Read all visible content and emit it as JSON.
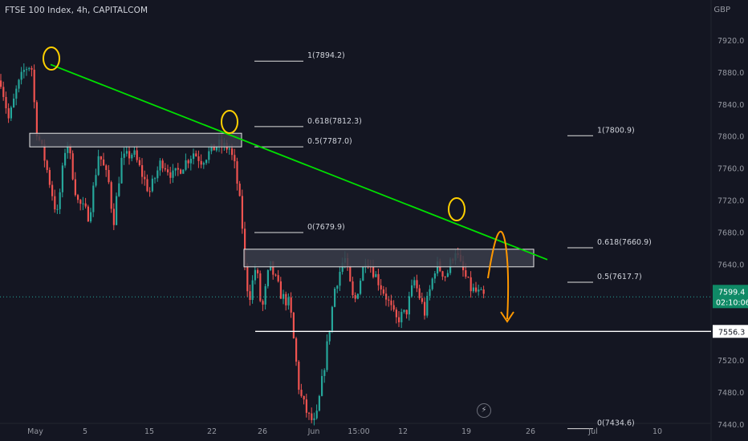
{
  "header": {
    "title": "FTSE 100 Index, 4h, CAPITALCOM",
    "currency": "GBP"
  },
  "icons": {
    "flash": "lightning-icon"
  },
  "colors": {
    "background": "#141622",
    "up": "#26a69a",
    "down": "#ef5350",
    "trendline": "#00e000",
    "circle": "#ffd000",
    "arrow": "#ff9800",
    "zone_fill": "#3a3d4a",
    "zone_border": "#e6e6e6",
    "support": "#ffffff",
    "last_price_badge": "#0f8a66"
  },
  "chart_data": {
    "type": "candlestick",
    "title": "FTSE 100 Index, 4h, CAPITALCOM",
    "ylabel": "GBP",
    "ylim": [
      7428,
      7938
    ],
    "yticks": [
      7920.0,
      7880.0,
      7840.0,
      7800.0,
      7760.0,
      7720.0,
      7680.0,
      7640.0,
      7600.0,
      7520.0,
      7480.0,
      7440.0
    ],
    "xticks": [
      "May",
      "5",
      "15",
      "22",
      "26",
      "Jun",
      "15:00",
      "12",
      "19",
      "26",
      "Jul",
      "10"
    ],
    "last_price": {
      "value": "7599.4",
      "countdown": "02:10:06"
    },
    "support_level": "7556.3",
    "zones": [
      {
        "name": "upper resistance zone",
        "low": 7787,
        "high": 7804
      },
      {
        "name": "lower resistance zone",
        "low": 7637,
        "high": 7659
      }
    ],
    "trendline": {
      "from": {
        "x": "May 2",
        "y": 7890
      },
      "to": {
        "x": "Jun 25",
        "y": 7646
      }
    },
    "fib_left": [
      {
        "label": "1(7894.2)",
        "value": 7894.2
      },
      {
        "label": "0.618(7812.3)",
        "value": 7812.3
      },
      {
        "label": "0.5(7787.0)",
        "value": 7787.0
      },
      {
        "label": "0(7679.9)",
        "value": 7679.9
      }
    ],
    "fib_right": [
      {
        "label": "1(7800.9)",
        "value": 7800.9
      },
      {
        "label": "0.618(7660.9)",
        "value": 7660.9
      },
      {
        "label": "0.5(7617.7)",
        "value": 7617.7
      },
      {
        "label": "0(7434.6)",
        "value": 7434.6
      }
    ],
    "path_points": [
      [
        7870,
        0
      ],
      [
        7820,
        10
      ],
      [
        7860,
        20
      ],
      [
        7885,
        30
      ],
      [
        7890,
        38
      ],
      [
        7810,
        44
      ],
      [
        7770,
        55
      ],
      [
        7700,
        70
      ],
      [
        7800,
        82
      ],
      [
        7720,
        95
      ],
      [
        7700,
        110
      ],
      [
        7780,
        122
      ],
      [
        7740,
        135
      ],
      [
        7690,
        140
      ],
      [
        7770,
        150
      ],
      [
        7780,
        165
      ],
      [
        7730,
        185
      ],
      [
        7770,
        200
      ],
      [
        7750,
        215
      ],
      [
        7780,
        240
      ],
      [
        7770,
        250
      ],
      [
        7790,
        270
      ],
      [
        7785,
        285
      ],
      [
        7760,
        292
      ],
      [
        7700,
        300
      ],
      [
        7620,
        305
      ],
      [
        7600,
        310
      ],
      [
        7640,
        318
      ],
      [
        7580,
        325
      ],
      [
        7640,
        335
      ],
      [
        7600,
        350
      ],
      [
        7590,
        360
      ],
      [
        7480,
        372
      ],
      [
        7450,
        383
      ],
      [
        7440,
        392
      ],
      [
        7520,
        404
      ],
      [
        7610,
        416
      ],
      [
        7650,
        428
      ],
      [
        7590,
        440
      ],
      [
        7650,
        455
      ],
      [
        7620,
        470
      ],
      [
        7600,
        480
      ],
      [
        7570,
        492
      ],
      [
        7580,
        505
      ],
      [
        7620,
        515
      ],
      [
        7580,
        528
      ],
      [
        7640,
        542
      ],
      [
        7625,
        555
      ],
      [
        7660,
        566
      ],
      [
        7640,
        572
      ],
      [
        7610,
        585
      ],
      [
        7598,
        604
      ]
    ]
  }
}
